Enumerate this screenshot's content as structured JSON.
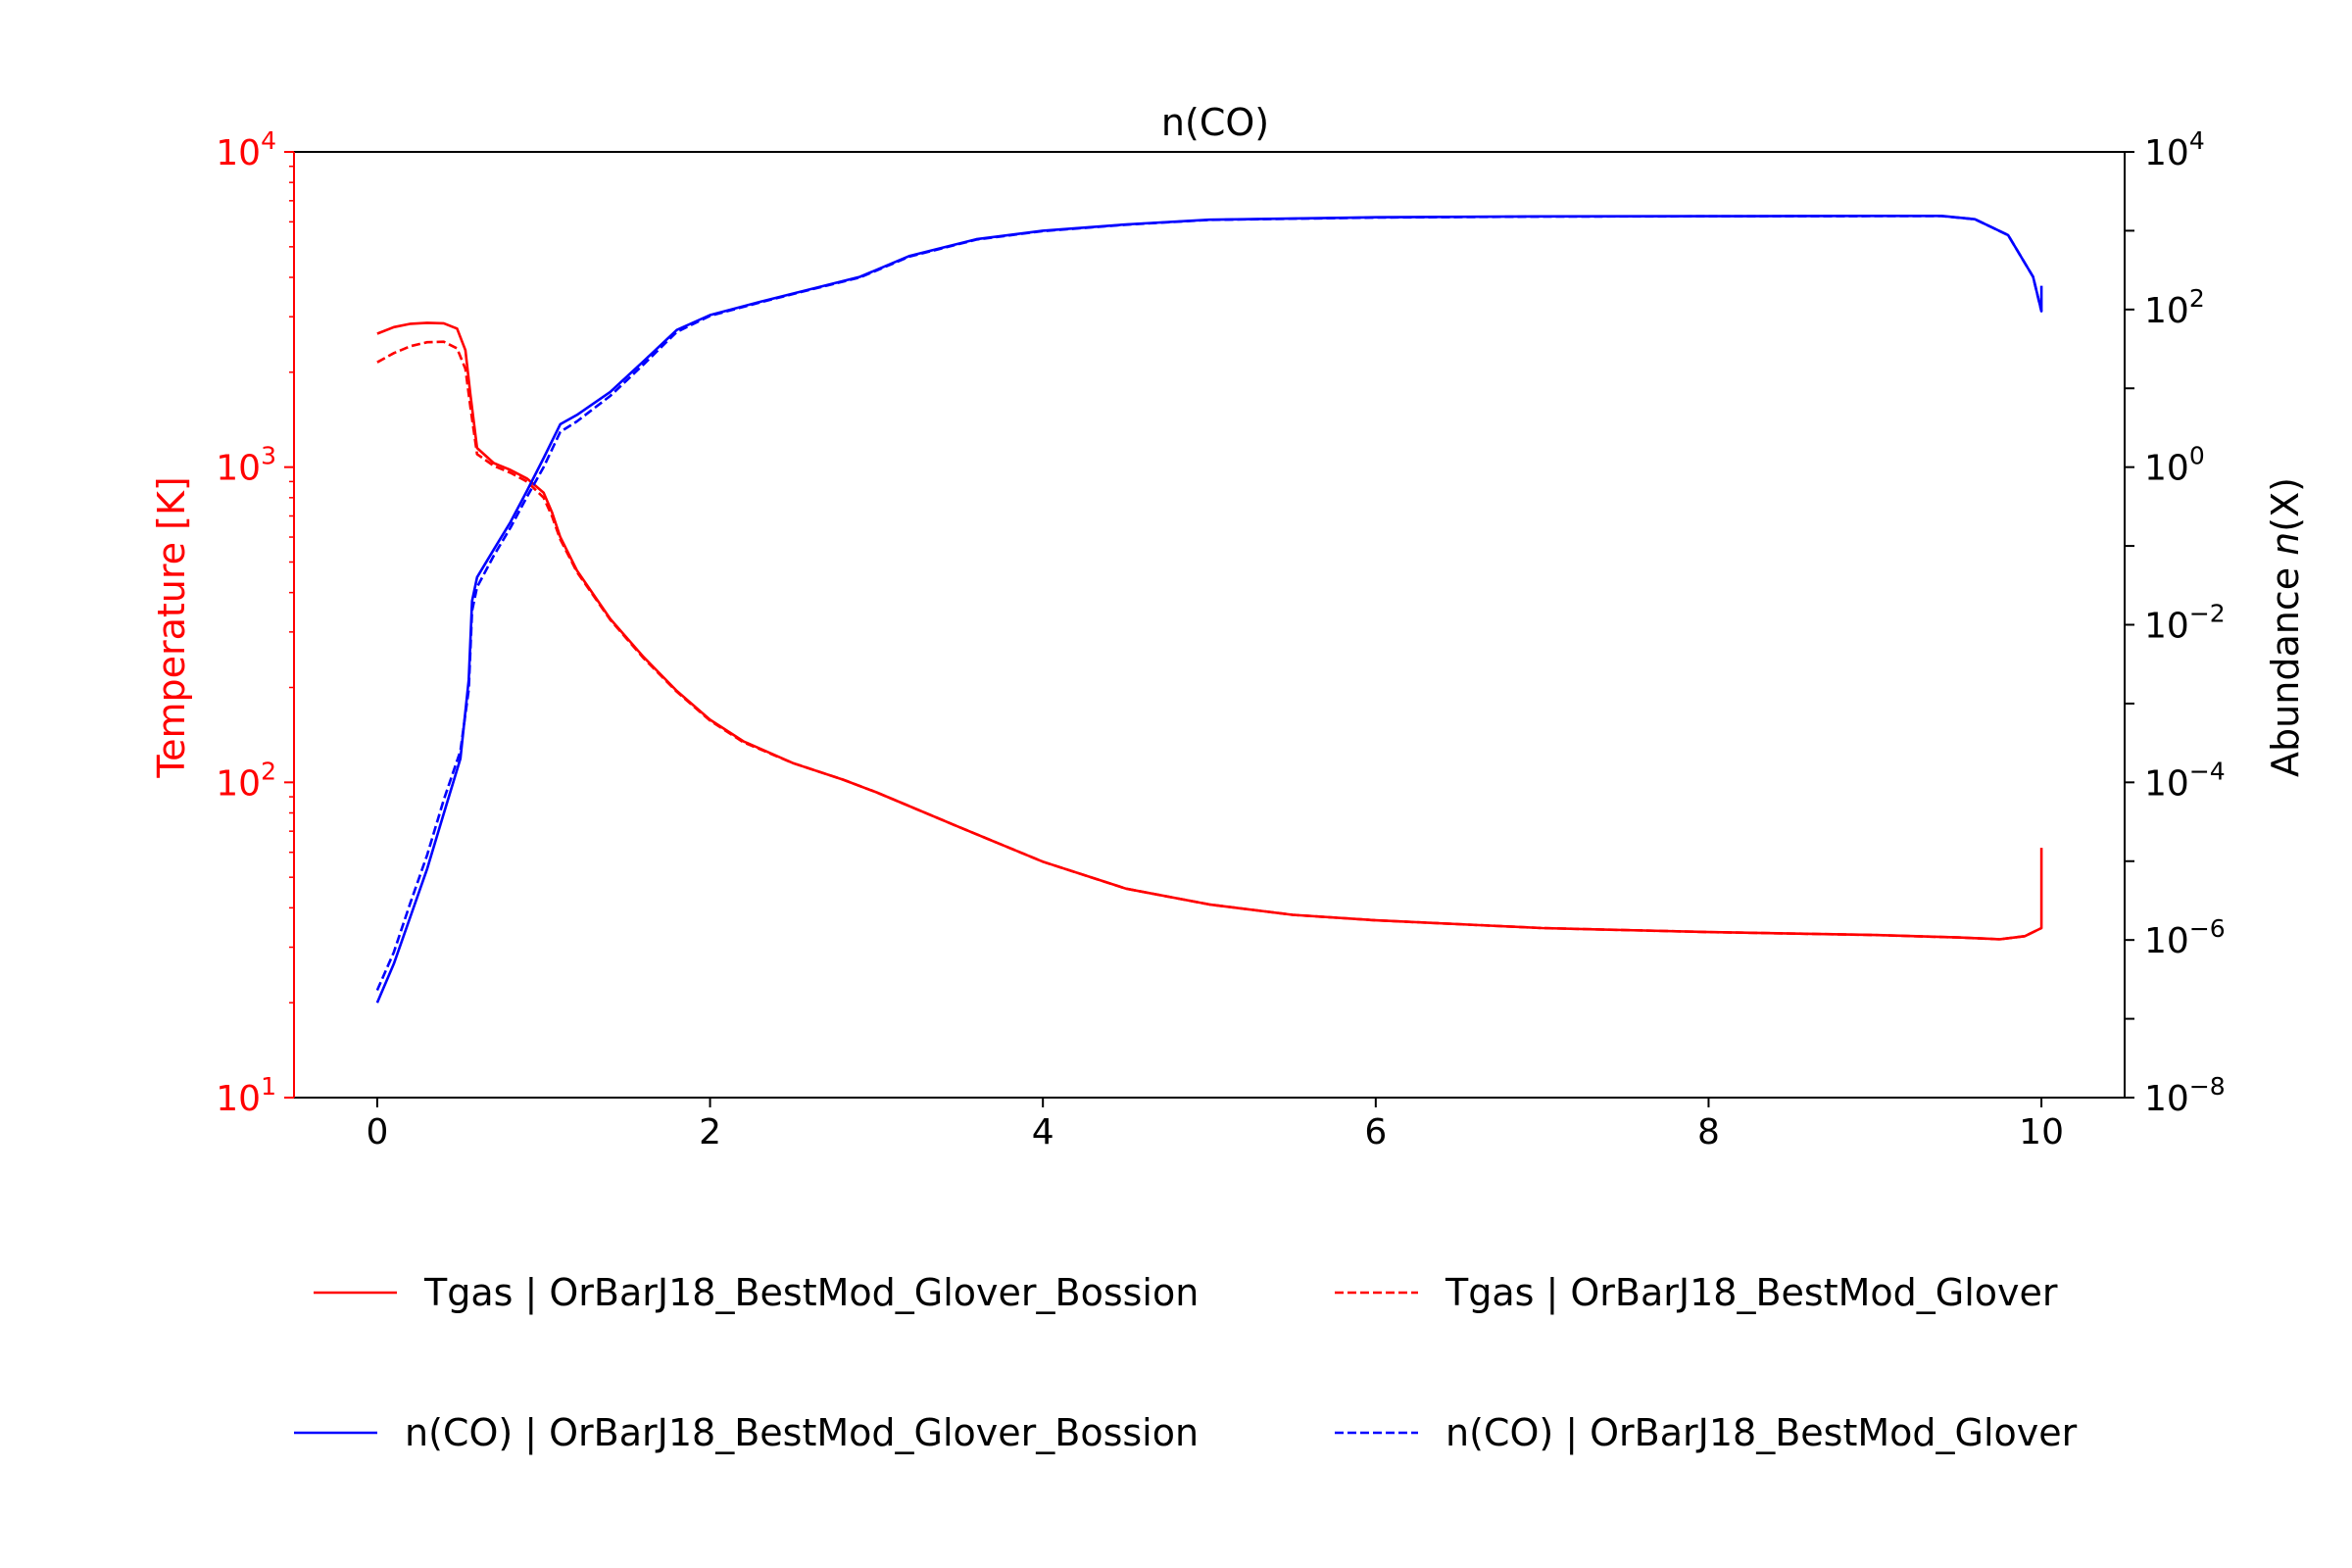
{
  "chart_data": {
    "type": "line",
    "title": "n(CO)",
    "xlabel": "",
    "xlim": [
      -0.5,
      10.5
    ],
    "x_ticks": [
      "0",
      "2",
      "4",
      "6",
      "8",
      "10"
    ],
    "y_left": {
      "label": "Temperature [K]",
      "scale": "log",
      "lim": [
        10,
        10000
      ],
      "tick_exponents": [
        "1",
        "2",
        "3",
        "4"
      ],
      "color": "#ff0000"
    },
    "y_right": {
      "label_text": "Abundance ",
      "label_italic": "n",
      "label_end": "(X)",
      "scale": "log",
      "lim": [
        1e-08,
        10000
      ],
      "tick_exponents": [
        "−8",
        "−6",
        "−4",
        "−2",
        "0",
        "2",
        "4"
      ],
      "color": "#000000"
    },
    "grid": false,
    "legend_placement": "below",
    "series": [
      {
        "name": "Tgas | OrBarJ18_BestMod_Glover_Bossion",
        "axis": "left",
        "color": "#ff0000",
        "dash": "solid",
        "points": [
          [
            0,
            2650
          ],
          [
            0.1,
            2780
          ],
          [
            0.2,
            2850
          ],
          [
            0.3,
            2870
          ],
          [
            0.4,
            2860
          ],
          [
            0.48,
            2750
          ],
          [
            0.53,
            2350
          ],
          [
            0.56,
            1700
          ],
          [
            0.6,
            1150
          ],
          [
            0.7,
            1030
          ],
          [
            0.8,
            980
          ],
          [
            0.9,
            920
          ],
          [
            1.0,
            830
          ],
          [
            1.05,
            720
          ],
          [
            1.1,
            600
          ],
          [
            1.2,
            470
          ],
          [
            1.4,
            330
          ],
          [
            1.6,
            250
          ],
          [
            1.8,
            195
          ],
          [
            2.0,
            158
          ],
          [
            2.2,
            135
          ],
          [
            2.5,
            115
          ],
          [
            2.8,
            102
          ],
          [
            3.0,
            93
          ],
          [
            3.5,
            72
          ],
          [
            4.0,
            56
          ],
          [
            4.5,
            46
          ],
          [
            5.0,
            41
          ],
          [
            5.5,
            38
          ],
          [
            6.0,
            36.5
          ],
          [
            7.0,
            34.5
          ],
          [
            8.0,
            33.5
          ],
          [
            9.0,
            32.8
          ],
          [
            9.5,
            32.2
          ],
          [
            9.75,
            31.8
          ],
          [
            9.9,
            32.5
          ],
          [
            10.0,
            34.5
          ],
          [
            10.0,
            62
          ]
        ]
      },
      {
        "name": "Tgas | OrBarJ18_BestMod_Glover",
        "axis": "left",
        "color": "#ff0000",
        "dash": "dashed",
        "points": [
          [
            0,
            2150
          ],
          [
            0.1,
            2300
          ],
          [
            0.2,
            2420
          ],
          [
            0.3,
            2490
          ],
          [
            0.4,
            2500
          ],
          [
            0.48,
            2380
          ],
          [
            0.53,
            2050
          ],
          [
            0.56,
            1550
          ],
          [
            0.6,
            1100
          ],
          [
            0.7,
            1010
          ],
          [
            0.8,
            960
          ],
          [
            0.9,
            900
          ],
          [
            1.0,
            800
          ],
          [
            1.05,
            700
          ],
          [
            1.1,
            590
          ],
          [
            1.2,
            465
          ],
          [
            1.4,
            328
          ],
          [
            1.6,
            248
          ],
          [
            1.8,
            194
          ],
          [
            2.0,
            157
          ],
          [
            2.2,
            134
          ],
          [
            2.5,
            115
          ],
          [
            2.8,
            102
          ],
          [
            3.0,
            93
          ],
          [
            3.5,
            72
          ],
          [
            4.0,
            56
          ],
          [
            4.5,
            46
          ],
          [
            5.0,
            41
          ],
          [
            5.5,
            38
          ],
          [
            6.0,
            36.5
          ],
          [
            7.0,
            34.5
          ],
          [
            8.0,
            33.5
          ],
          [
            9.0,
            32.8
          ],
          [
            9.5,
            32.2
          ],
          [
            9.75,
            31.8
          ],
          [
            9.9,
            32.5
          ],
          [
            10.0,
            34.5
          ]
        ]
      },
      {
        "name": "n(CO) | OrBarJ18_BestMod_Glover_Bossion",
        "axis": "right",
        "color": "#0000ff",
        "dash": "solid",
        "points": [
          [
            0,
            1.6e-07
          ],
          [
            0.1,
            5e-07
          ],
          [
            0.2,
            2e-06
          ],
          [
            0.3,
            8e-06
          ],
          [
            0.4,
            4e-05
          ],
          [
            0.5,
            0.0002
          ],
          [
            0.55,
            0.002
          ],
          [
            0.57,
            0.02
          ],
          [
            0.6,
            0.04
          ],
          [
            0.7,
            0.09
          ],
          [
            0.8,
            0.2
          ],
          [
            0.9,
            0.5
          ],
          [
            1.0,
            1.3
          ],
          [
            1.1,
            3.5
          ],
          [
            1.2,
            4.6
          ],
          [
            1.4,
            9
          ],
          [
            1.6,
            22
          ],
          [
            1.8,
            55
          ],
          [
            2.0,
            85
          ],
          [
            2.3,
            125
          ],
          [
            2.6,
            180
          ],
          [
            2.9,
            260
          ],
          [
            3.2,
            480
          ],
          [
            3.6,
            780
          ],
          [
            4.0,
            1000
          ],
          [
            4.5,
            1200
          ],
          [
            5.0,
            1380
          ],
          [
            6.0,
            1480
          ],
          [
            7.0,
            1520
          ],
          [
            8.0,
            1530
          ],
          [
            9.0,
            1540
          ],
          [
            9.4,
            1540
          ],
          [
            9.6,
            1400
          ],
          [
            9.8,
            880
          ],
          [
            9.95,
            260
          ],
          [
            10.0,
            95
          ],
          [
            10.0,
            200
          ]
        ]
      },
      {
        "name": "n(CO) | OrBarJ18_BestMod_Glover",
        "axis": "right",
        "color": "#0000ff",
        "dash": "dashed",
        "points": [
          [
            0,
            2.3e-07
          ],
          [
            0.1,
            7e-07
          ],
          [
            0.2,
            3e-06
          ],
          [
            0.3,
            1.2e-05
          ],
          [
            0.4,
            6e-05
          ],
          [
            0.5,
            0.00025
          ],
          [
            0.55,
            0.0015
          ],
          [
            0.57,
            0.015
          ],
          [
            0.6,
            0.03
          ],
          [
            0.7,
            0.075
          ],
          [
            0.8,
            0.17
          ],
          [
            0.9,
            0.42
          ],
          [
            1.0,
            1.0
          ],
          [
            1.1,
            2.8
          ],
          [
            1.2,
            3.8
          ],
          [
            1.4,
            8
          ],
          [
            1.6,
            20
          ],
          [
            1.8,
            52
          ],
          [
            2.0,
            83
          ],
          [
            2.3,
            123
          ],
          [
            2.6,
            178
          ],
          [
            2.9,
            255
          ],
          [
            3.2,
            470
          ],
          [
            3.6,
            770
          ],
          [
            4.0,
            990
          ],
          [
            4.5,
            1190
          ],
          [
            5.0,
            1370
          ],
          [
            6.0,
            1470
          ],
          [
            7.0,
            1510
          ],
          [
            8.0,
            1525
          ],
          [
            9.0,
            1535
          ],
          [
            9.4,
            1535
          ],
          [
            9.6,
            1400
          ],
          [
            9.8,
            880
          ],
          [
            9.95,
            260
          ],
          [
            10.0,
            95
          ]
        ]
      }
    ]
  }
}
